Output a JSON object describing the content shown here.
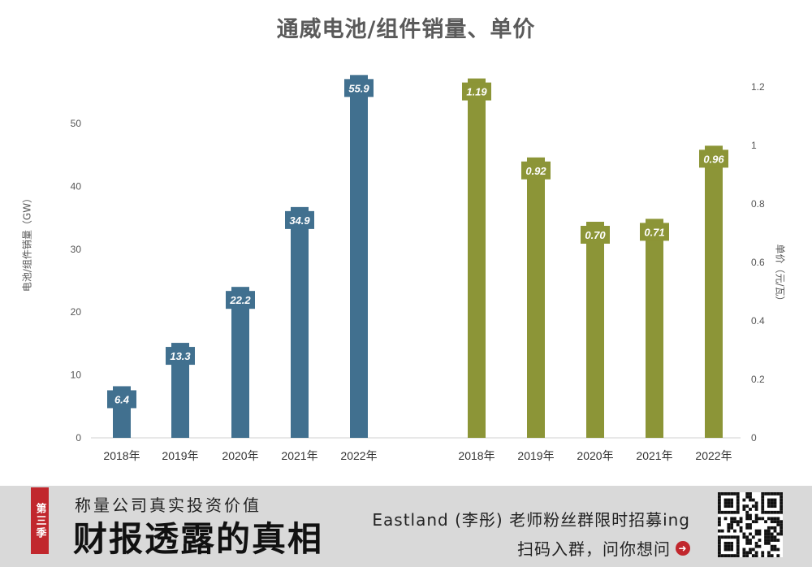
{
  "chart_data": {
    "type": "bar",
    "title": "通威电池/组件销量、单价",
    "left_panel": {
      "ylabel": "电池/组件销量（GW）",
      "ylim": [
        0,
        55
      ],
      "yticks": [
        0,
        10,
        20,
        30,
        40,
        50
      ],
      "categories": [
        "2018年",
        "2019年",
        "2020年",
        "2021年",
        "2022年"
      ],
      "values": [
        6.4,
        13.3,
        22.2,
        34.9,
        55.9
      ],
      "labels": [
        "6.4",
        "13.3",
        "22.2",
        "34.9",
        "55.9"
      ],
      "color": "#41708f"
    },
    "right_panel": {
      "ylabel": "单价（元/瓦）",
      "ylim": [
        0,
        1.2
      ],
      "yticks": [
        "0",
        "0.2",
        "0.4",
        "0.6",
        "0.8",
        "1",
        "1.2"
      ],
      "categories": [
        "2018年",
        "2019年",
        "2020年",
        "2021年",
        "2022年"
      ],
      "values": [
        1.19,
        0.92,
        0.7,
        0.71,
        0.96
      ],
      "labels": [
        "1.19",
        "0.92",
        "0.70",
        "0.71",
        "0.96"
      ],
      "color": "#8c9537"
    },
    "grid": false
  },
  "footer": {
    "badge": "第三季",
    "subtitle": "称量公司真实投资价值",
    "main": "财报透露的真相",
    "promo": "Eastland (李彤) 老师粉丝群限时招募ing",
    "cta": "扫码入群，问你想问",
    "cta_icon": "arrow-right-circle-icon",
    "qr": "qr-code"
  }
}
